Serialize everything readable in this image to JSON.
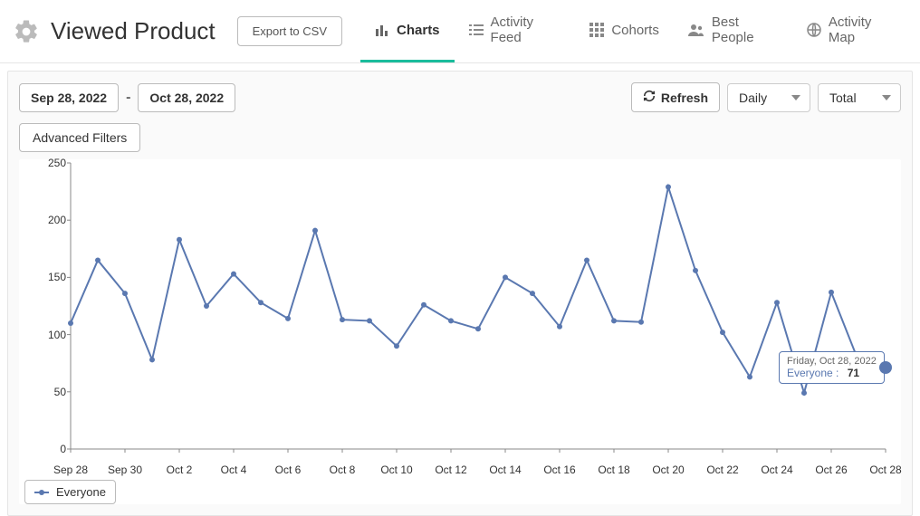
{
  "header": {
    "title": "Viewed Product",
    "export_label": "Export to CSV",
    "tabs": [
      {
        "label": "Charts",
        "icon": "chart-bar-icon",
        "active": true
      },
      {
        "label": "Activity Feed",
        "icon": "list-icon",
        "active": false
      },
      {
        "label": "Cohorts",
        "icon": "grid-icon",
        "active": false
      },
      {
        "label": "Best People",
        "icon": "people-icon",
        "active": false
      },
      {
        "label": "Activity Map",
        "icon": "globe-icon",
        "active": false
      }
    ]
  },
  "controls": {
    "date_from": "Sep 28, 2022",
    "date_to": "Oct 28, 2022",
    "refresh_label": "Refresh",
    "granularity": "Daily",
    "aggregation": "Total",
    "advanced_filters_label": "Advanced Filters"
  },
  "chart": {
    "type": "line",
    "ylim": [
      0,
      250
    ],
    "ytick_step": 50,
    "line_color": "#5a78b0",
    "line_width": 2,
    "marker_radius": 3,
    "background_color": "#ffffff",
    "axis_color": "#888888",
    "xticks": [
      "Sep 28",
      "Sep 30",
      "Oct 2",
      "Oct 4",
      "Oct 6",
      "Oct 8",
      "Oct 10",
      "Oct 12",
      "Oct 14",
      "Oct 16",
      "Oct 18",
      "Oct 20",
      "Oct 22",
      "Oct 24",
      "Oct 26",
      "Oct 28"
    ],
    "dates": [
      "Sep 28",
      "Sep 29",
      "Sep 30",
      "Oct 1",
      "Oct 2",
      "Oct 3",
      "Oct 4",
      "Oct 5",
      "Oct 6",
      "Oct 7",
      "Oct 8",
      "Oct 9",
      "Oct 10",
      "Oct 11",
      "Oct 12",
      "Oct 13",
      "Oct 14",
      "Oct 15",
      "Oct 16",
      "Oct 17",
      "Oct 18",
      "Oct 19",
      "Oct 20",
      "Oct 21",
      "Oct 22",
      "Oct 23",
      "Oct 24",
      "Oct 25",
      "Oct 26",
      "Oct 27",
      "Oct 28"
    ],
    "values": [
      110,
      165,
      136,
      78,
      183,
      125,
      153,
      128,
      114,
      191,
      113,
      112,
      90,
      126,
      112,
      105,
      150,
      136,
      107,
      165,
      112,
      111,
      229,
      156,
      102,
      63,
      128,
      49,
      137,
      77,
      71
    ],
    "tooltip": {
      "index": 30,
      "date_label": "Friday, Oct 28, 2022",
      "series_label": "Everyone :",
      "value": "71"
    },
    "legend": {
      "series_label": "Everyone"
    }
  }
}
